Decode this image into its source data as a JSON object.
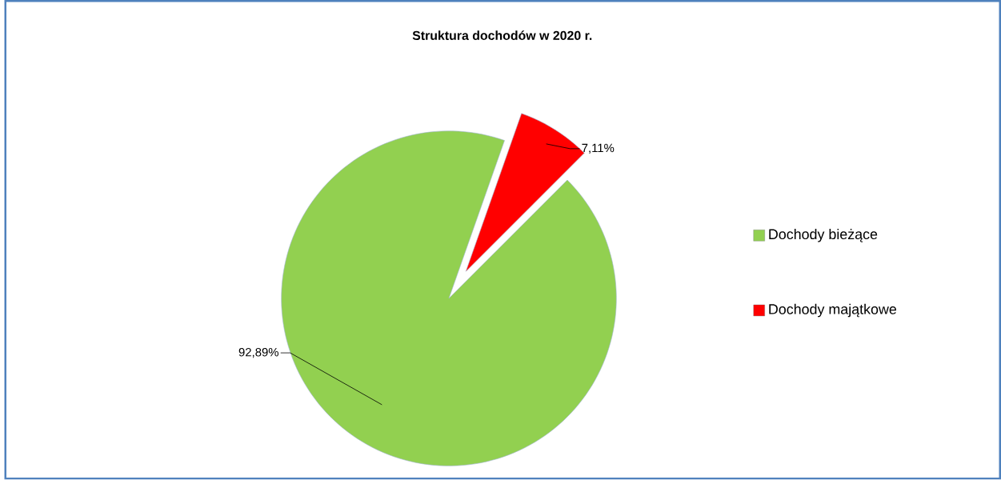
{
  "chart_data": {
    "type": "pie",
    "title": "Struktura dochodów w 2020 r.",
    "categories": [
      "Dochody bieżące",
      "Dochody majątkowe"
    ],
    "values": [
      92.89,
      7.11
    ],
    "colors": [
      "#92d050",
      "#ff0000"
    ],
    "value_labels": [
      "92,89%",
      "7,11%"
    ],
    "legend": "right"
  }
}
